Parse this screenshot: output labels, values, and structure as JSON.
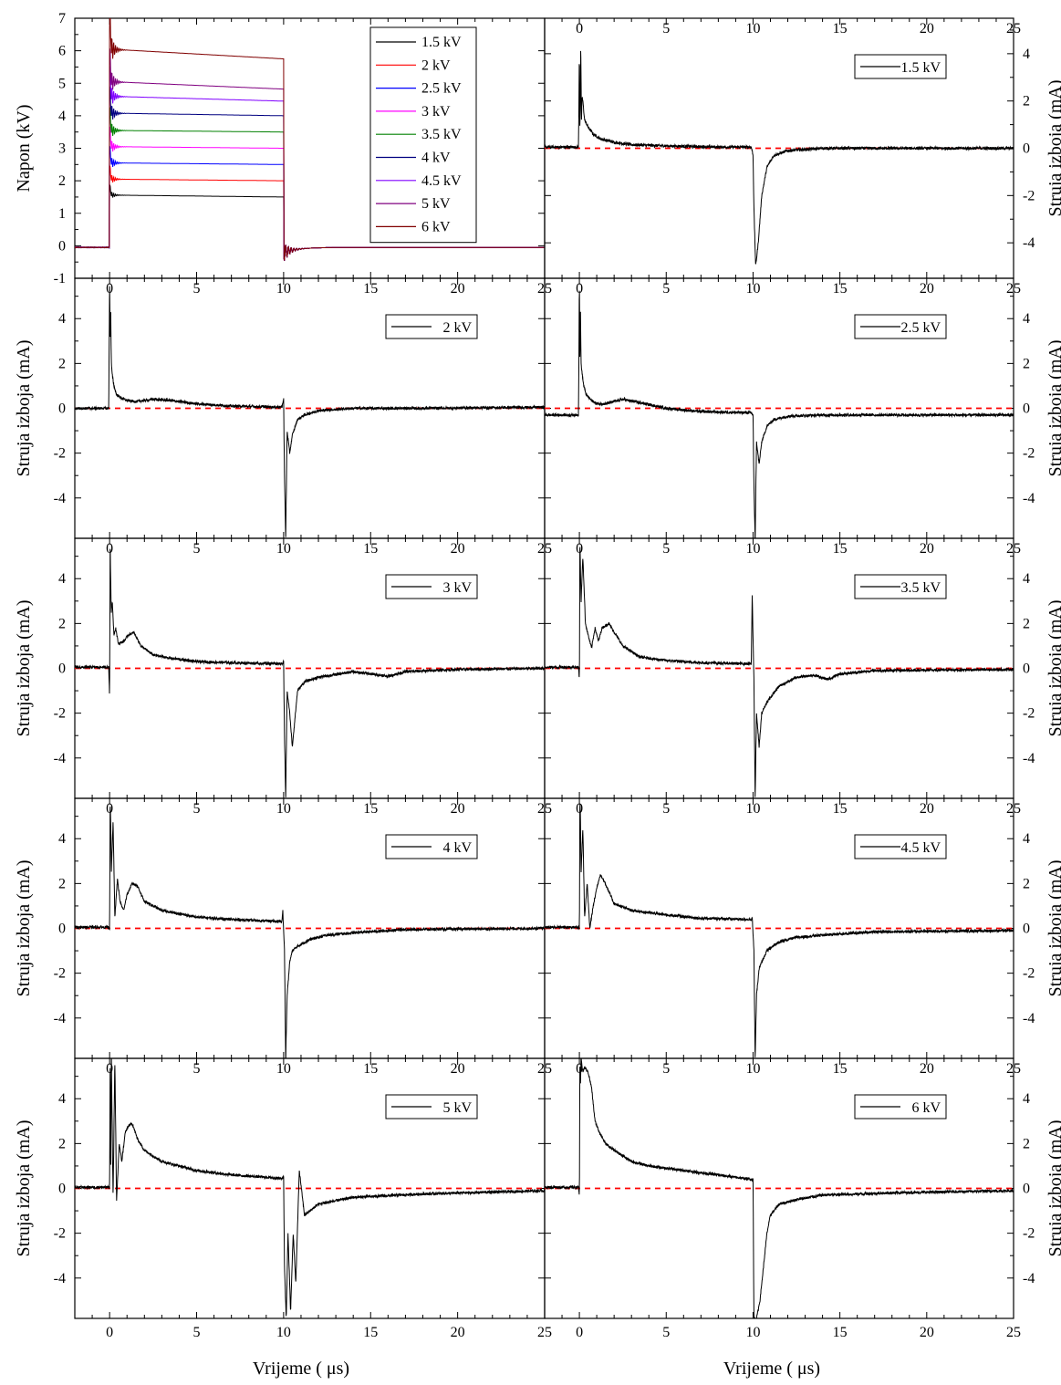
{
  "figure": {
    "xlabel": "Vrijeme ( μs)",
    "x_ticks": [
      0,
      5,
      10,
      15,
      20,
      25
    ],
    "xlim": [
      -2,
      25
    ]
  },
  "chart_data": [
    {
      "id": "voltage",
      "type": "line",
      "ylabel": "Napon (kV)",
      "ylim": [
        -1,
        7
      ],
      "y_ticks": [
        -1,
        0,
        1,
        2,
        3,
        4,
        5,
        6,
        7
      ],
      "y_axis_side": "left",
      "legend_position": "top-right",
      "series": [
        {
          "name": "1.5 kV",
          "color": "#000000",
          "start": 1.56,
          "end": 1.5
        },
        {
          "name": "2 kV",
          "color": "#ff0000",
          "start": 2.05,
          "end": 2.0
        },
        {
          "name": "2.5 kV",
          "color": "#0000ff",
          "start": 2.55,
          "end": 2.5
        },
        {
          "name": "3 kV",
          "color": "#ff00ff",
          "start": 3.05,
          "end": 3.0
        },
        {
          "name": "3.5 kV",
          "color": "#008000",
          "start": 3.55,
          "end": 3.5
        },
        {
          "name": "4 kV",
          "color": "#000080",
          "start": 4.08,
          "end": 4.0
        },
        {
          "name": "4.5 kV",
          "color": "#8000ff",
          "start": 4.6,
          "end": 4.45
        },
        {
          "name": "5 kV",
          "color": "#800080",
          "start": 5.05,
          "end": 4.82
        },
        {
          "name": "6 kV",
          "color": "#800000",
          "start": 6.05,
          "end": 5.75
        }
      ]
    },
    {
      "id": "current-1.5kV",
      "type": "line",
      "ylabel": "Struja izboja (mA)",
      "y_axis_side": "right",
      "ylim": [
        -5.5,
        5.5
      ],
      "y_ticks": [
        -4,
        -2,
        0,
        2,
        4
      ],
      "legend": "1.5 kV",
      "legend_position": "top-right",
      "x": [
        -2,
        -0.05,
        0,
        0.02,
        0.05,
        0.08,
        0.12,
        0.15,
        0.2,
        0.3,
        0.5,
        0.8,
        1.2,
        2,
        3,
        5,
        8,
        9.9,
        10.0,
        10.05,
        10.15,
        10.3,
        10.5,
        10.8,
        11.2,
        12,
        14,
        18,
        25
      ],
      "y": [
        0.05,
        0.05,
        4.2,
        0.8,
        1.5,
        4.5,
        1.0,
        2.2,
        2.0,
        1.2,
        0.9,
        0.6,
        0.4,
        0.25,
        0.15,
        0.1,
        0.05,
        0.05,
        -0.3,
        -2.5,
        -5.0,
        -4.0,
        -2.0,
        -0.8,
        -0.3,
        -0.1,
        0.0,
        0.0,
        0.0
      ]
    },
    {
      "id": "current-2kV",
      "type": "line",
      "ylabel": "Struja izboja (mA)",
      "y_axis_side": "left",
      "ylim": [
        -5.8,
        5.8
      ],
      "y_ticks": [
        -4,
        -2,
        0,
        2,
        4
      ],
      "legend": "2 kV",
      "legend_position": "top-right",
      "x": [
        -2,
        -0.05,
        0,
        0.03,
        0.06,
        0.1,
        0.15,
        0.25,
        0.4,
        0.7,
        1.0,
        1.5,
        2.5,
        3.5,
        5,
        7,
        9.9,
        10.0,
        10.05,
        10.12,
        10.2,
        10.35,
        10.5,
        10.8,
        11.2,
        12,
        14,
        18,
        25
      ],
      "y": [
        0.0,
        0.0,
        5.8,
        3.0,
        4.5,
        2.0,
        1.5,
        1.0,
        0.6,
        0.45,
        0.35,
        0.3,
        0.4,
        0.35,
        0.2,
        0.1,
        0.05,
        0.4,
        -3.0,
        -5.8,
        -1.0,
        -2.0,
        -1.2,
        -0.5,
        -0.3,
        -0.1,
        0.0,
        0.0,
        0.05
      ]
    },
    {
      "id": "current-2.5kV",
      "type": "line",
      "ylabel": "Struja izboja (mA)",
      "y_axis_side": "right",
      "ylim": [
        -5.8,
        5.8
      ],
      "y_ticks": [
        -4,
        -2,
        0,
        2,
        4
      ],
      "legend": "2.5 kV",
      "legend_position": "top-right",
      "x": [
        -2,
        -0.05,
        0,
        0.03,
        0.06,
        0.1,
        0.15,
        0.25,
        0.4,
        0.7,
        1.0,
        1.5,
        2.5,
        3.5,
        5,
        7,
        9.9,
        10.0,
        10.05,
        10.12,
        10.2,
        10.35,
        10.5,
        10.8,
        11.2,
        12,
        14,
        18,
        25
      ],
      "y": [
        -0.3,
        -0.3,
        5.8,
        2.0,
        4.5,
        2.0,
        1.6,
        1.0,
        0.6,
        0.35,
        0.2,
        0.2,
        0.4,
        0.25,
        0.0,
        -0.15,
        -0.2,
        -0.3,
        -3.5,
        -5.8,
        -1.5,
        -2.5,
        -1.5,
        -0.8,
        -0.5,
        -0.35,
        -0.3,
        -0.3,
        -0.3
      ]
    },
    {
      "id": "current-3kV",
      "type": "line",
      "ylabel": "Struja izboja (mA)",
      "y_axis_side": "left",
      "ylim": [
        -5.8,
        5.8
      ],
      "y_ticks": [
        -4,
        -2,
        0,
        2,
        4
      ],
      "legend": "3 kV",
      "legend_position": "top-right",
      "x": [
        -2,
        -0.05,
        0,
        0.03,
        0.06,
        0.1,
        0.15,
        0.25,
        0.35,
        0.5,
        0.8,
        1.1,
        1.4,
        1.8,
        2.5,
        3.5,
        5,
        7,
        9.9,
        10.0,
        10.05,
        10.12,
        10.2,
        10.35,
        10.5,
        10.8,
        11.2,
        12,
        14,
        16,
        17,
        20,
        25
      ],
      "y": [
        0.05,
        0.05,
        -1.3,
        5.8,
        4.0,
        2.5,
        3.0,
        1.5,
        1.8,
        1.1,
        1.2,
        1.5,
        1.6,
        1.0,
        0.6,
        0.45,
        0.3,
        0.25,
        0.2,
        0.3,
        -3.0,
        -5.8,
        -1.0,
        -2.0,
        -3.5,
        -1.0,
        -0.6,
        -0.4,
        -0.15,
        -0.35,
        -0.15,
        -0.05,
        0.0
      ]
    },
    {
      "id": "current-3.5kV",
      "type": "line",
      "ylabel": "Struja izboja (mA)",
      "y_axis_side": "right",
      "ylim": [
        -5.8,
        5.8
      ],
      "y_ticks": [
        -4,
        -2,
        0,
        2,
        4
      ],
      "legend": "3.5 kV",
      "legend_position": "top-right",
      "x": [
        -2,
        -0.05,
        0,
        0.03,
        0.06,
        0.1,
        0.2,
        0.35,
        0.5,
        0.7,
        0.9,
        1.1,
        1.3,
        1.7,
        2.5,
        3.5,
        5,
        7,
        9.9,
        9.95,
        10.05,
        10.12,
        10.2,
        10.35,
        10.5,
        10.8,
        11.5,
        12.5,
        13.5,
        14.3,
        15,
        17,
        25
      ],
      "y": [
        0.05,
        0.05,
        -0.5,
        5.8,
        4.5,
        3.0,
        5.0,
        2.0,
        1.5,
        0.9,
        1.8,
        1.2,
        1.8,
        2.0,
        1.0,
        0.5,
        0.35,
        0.25,
        0.2,
        3.3,
        -0.5,
        -5.8,
        -2.0,
        -3.5,
        -2.0,
        -1.5,
        -0.8,
        -0.4,
        -0.3,
        -0.5,
        -0.25,
        -0.1,
        -0.05
      ]
    },
    {
      "id": "current-4kV",
      "type": "line",
      "ylabel": "Struja izboja (mA)",
      "y_axis_side": "left",
      "ylim": [
        -5.8,
        5.8
      ],
      "y_ticks": [
        -4,
        -2,
        0,
        2,
        4
      ],
      "legend": "4 kV",
      "legend_position": "top-right",
      "x": [
        -2,
        -0.05,
        0,
        0.03,
        0.06,
        0.1,
        0.2,
        0.3,
        0.45,
        0.6,
        0.8,
        1.0,
        1.3,
        1.6,
        2.0,
        3,
        5,
        7,
        9.9,
        9.95,
        10.05,
        10.12,
        10.2,
        10.35,
        10.5,
        10.8,
        11.5,
        12.5,
        14,
        17,
        25
      ],
      "y": [
        0.05,
        0.05,
        0.0,
        5.8,
        4.8,
        2.5,
        4.8,
        0.5,
        2.2,
        1.2,
        0.8,
        1.5,
        2.0,
        1.9,
        1.2,
        0.8,
        0.5,
        0.4,
        0.3,
        0.8,
        -1.0,
        -5.8,
        -3.0,
        -1.5,
        -1.0,
        -0.8,
        -0.5,
        -0.3,
        -0.2,
        -0.05,
        0.0
      ]
    },
    {
      "id": "current-4.5kV",
      "type": "line",
      "ylabel": "Struja izboja (mA)",
      "y_axis_side": "right",
      "ylim": [
        -5.8,
        5.8
      ],
      "y_ticks": [
        -4,
        -2,
        0,
        2,
        4
      ],
      "legend": "4.5 kV",
      "legend_position": "top-right",
      "x": [
        -2,
        -0.05,
        0,
        0.03,
        0.06,
        0.1,
        0.2,
        0.3,
        0.45,
        0.6,
        0.8,
        1.0,
        1.2,
        1.5,
        2.0,
        3,
        5,
        7,
        9.9,
        9.95,
        10.05,
        10.12,
        10.2,
        10.35,
        10.5,
        10.8,
        11.5,
        12.5,
        14,
        17,
        25
      ],
      "y": [
        0.05,
        0.05,
        0.0,
        5.8,
        5.0,
        2.5,
        4.5,
        0.5,
        2.0,
        0.0,
        1.0,
        1.8,
        2.4,
        2.0,
        1.1,
        0.8,
        0.6,
        0.45,
        0.4,
        0.5,
        -1.0,
        -5.8,
        -3.0,
        -1.8,
        -1.5,
        -1.0,
        -0.6,
        -0.4,
        -0.3,
        -0.15,
        -0.1
      ]
    },
    {
      "id": "current-5kV",
      "type": "line",
      "ylabel": "Struja izboja (mA)",
      "y_axis_side": "left",
      "ylim": [
        -5.8,
        5.8
      ],
      "y_ticks": [
        -4,
        -2,
        0,
        2,
        4
      ],
      "legend": "5 kV",
      "legend_position": "top-right",
      "x": [
        -2,
        -0.05,
        0,
        0.03,
        0.06,
        0.1,
        0.2,
        0.3,
        0.4,
        0.55,
        0.7,
        0.9,
        1.1,
        1.3,
        1.6,
        2.0,
        3,
        5,
        7,
        9.9,
        10.0,
        10.05,
        10.15,
        10.25,
        10.4,
        10.55,
        10.7,
        10.9,
        11.2,
        12,
        14,
        18,
        25
      ],
      "y": [
        0.05,
        0.05,
        0.0,
        5.8,
        0.5,
        5.8,
        -0.5,
        5.8,
        -0.6,
        2.0,
        1.2,
        2.5,
        2.8,
        2.9,
        2.2,
        1.7,
        1.2,
        0.8,
        0.6,
        0.45,
        0.5,
        -3.5,
        -5.8,
        -2.0,
        -5.5,
        -2.0,
        -4.2,
        0.8,
        -1.2,
        -0.7,
        -0.4,
        -0.25,
        -0.1
      ]
    },
    {
      "id": "current-6kV",
      "type": "line",
      "ylabel": "Struja izboja (mA)",
      "y_axis_side": "right",
      "ylim": [
        -5.8,
        5.8
      ],
      "y_ticks": [
        -4,
        -2,
        0,
        2,
        4
      ],
      "legend": "6 kV",
      "legend_position": "top-right",
      "x": [
        -2,
        -0.05,
        0,
        0.03,
        0.06,
        0.1,
        0.2,
        0.3,
        0.5,
        0.7,
        0.9,
        1.1,
        1.5,
        2.0,
        3,
        4,
        5,
        7,
        9.9,
        10.0,
        10.05,
        10.2,
        10.4,
        10.6,
        10.8,
        11.0,
        11.5,
        12.5,
        14,
        18,
        25
      ],
      "y": [
        0.05,
        0.05,
        -0.3,
        5.8,
        4.5,
        5.8,
        5.2,
        5.4,
        5.2,
        4.5,
        3.0,
        2.6,
        2.0,
        1.7,
        1.2,
        1.0,
        0.9,
        0.7,
        0.4,
        0.4,
        -5.8,
        -5.8,
        -5.0,
        -3.5,
        -2.0,
        -1.2,
        -0.7,
        -0.5,
        -0.3,
        -0.2,
        -0.1
      ]
    }
  ]
}
